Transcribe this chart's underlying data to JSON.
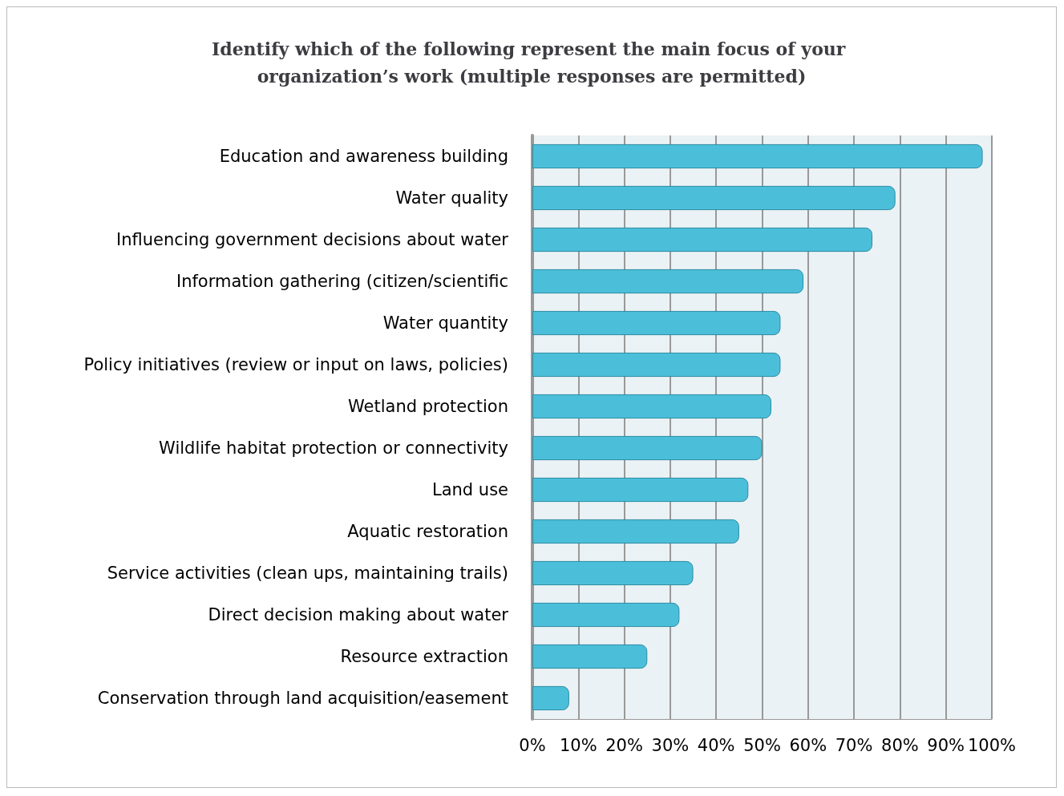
{
  "chart_data": {
    "type": "bar",
    "orientation": "horizontal",
    "title": "Identify which of the following represent the main focus of your organization’s work (multiple responses are permitted)",
    "categories": [
      "Education and awareness building",
      "Water quality",
      "Influencing government decisions about water",
      "Information gathering (citizen/scientific",
      "Water quantity",
      "Policy initiatives (review or input on laws, policies)",
      "Wetland protection",
      "Wildlife habitat protection or connectivity",
      "Land use",
      "Aquatic restoration",
      "Service activities (clean ups, maintaining trails)",
      "Direct decision making about water",
      "Resource extraction",
      "Conservation through land acquisition/easement"
    ],
    "values": [
      98,
      79,
      74,
      59,
      54,
      54,
      52,
      50,
      47,
      45,
      35,
      32,
      25,
      8
    ],
    "color": "#4bbfd9",
    "xlim": [
      0,
      100
    ],
    "xticks": [
      {
        "value": 0,
        "label": "0%"
      },
      {
        "value": 10,
        "label": "10%"
      },
      {
        "value": 20,
        "label": "20%"
      },
      {
        "value": 30,
        "label": "30%"
      },
      {
        "value": 40,
        "label": "40%"
      },
      {
        "value": 50,
        "label": "50%"
      },
      {
        "value": 60,
        "label": "60%"
      },
      {
        "value": 70,
        "label": "70%"
      },
      {
        "value": 80,
        "label": "80%"
      },
      {
        "value": 90,
        "label": "90%"
      },
      {
        "value": 100,
        "label": "100%"
      }
    ],
    "grid": "x"
  }
}
